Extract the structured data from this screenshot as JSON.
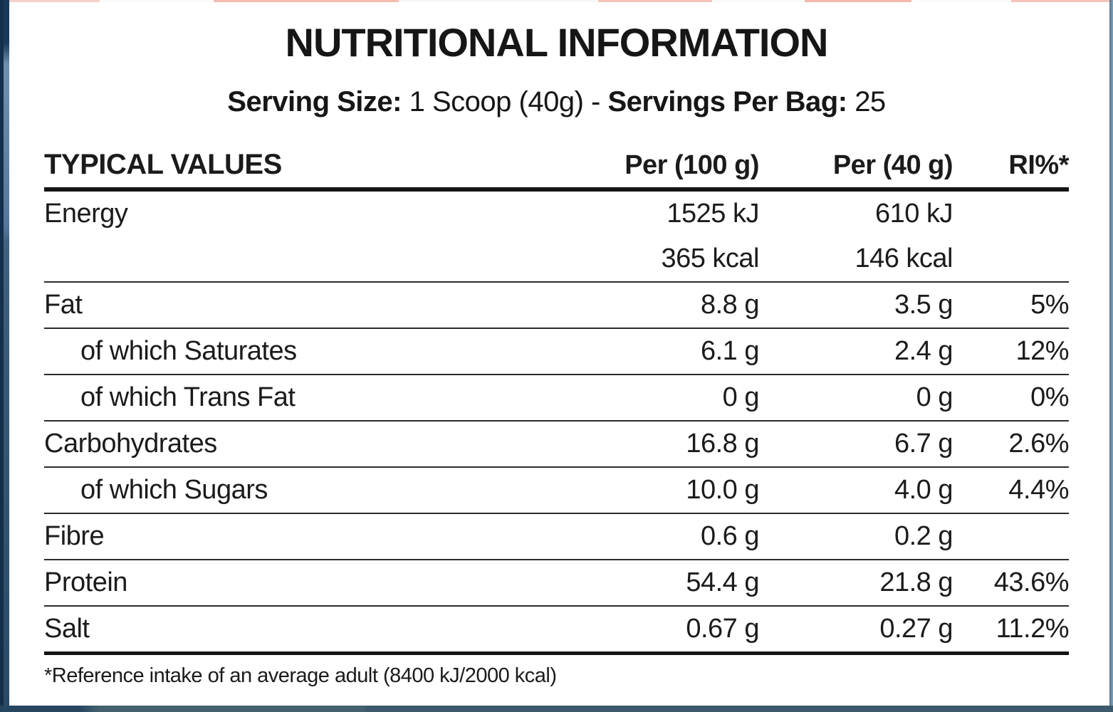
{
  "title": "NUTRITIONAL INFORMATION",
  "serving": {
    "size_label": "Serving Size:",
    "size_value": "1 Scoop (40g)",
    "separator": "-",
    "per_bag_label": "Servings Per Bag:",
    "per_bag_value": "25"
  },
  "table": {
    "headers": {
      "col0": "TYPICAL VALUES",
      "col1": "Per (100 g)",
      "col2": "Per (40 g)",
      "col3": "RI%*"
    },
    "rows": [
      {
        "label": "Energy",
        "per100": "1525 kJ",
        "per40": "610 kJ",
        "ri": ""
      },
      {
        "label": "",
        "per100": "365 kcal",
        "per40": "146 kcal",
        "ri": ""
      },
      {
        "label": "Fat",
        "per100": "8.8 g",
        "per40": "3.5 g",
        "ri": "5%"
      },
      {
        "label": "of which Saturates",
        "per100": "6.1 g",
        "per40": "2.4 g",
        "ri": "12%"
      },
      {
        "label": "of which Trans Fat",
        "per100": "0 g",
        "per40": "0 g",
        "ri": "0%"
      },
      {
        "label": "Carbohydrates",
        "per100": "16.8 g",
        "per40": "6.7 g",
        "ri": "2.6%"
      },
      {
        "label": "of which Sugars",
        "per100": "10.0 g",
        "per40": "4.0 g",
        "ri": "4.4%"
      },
      {
        "label": "Fibre",
        "per100": "0.6 g",
        "per40": "0.2 g",
        "ri": ""
      },
      {
        "label": "Protein",
        "per100": "54.4 g",
        "per40": "21.8 g",
        "ri": "43.6%"
      },
      {
        "label": "Salt",
        "per100": "0.67 g",
        "per40": "0.27 g",
        "ri": "11.2%"
      }
    ]
  },
  "footnote": "*Reference intake of an average adult (8400 kJ/2000 kcal)",
  "colors": {
    "card_bg": "#ffffff",
    "text": "#1b1b1b",
    "rule_thin": "#2b2b2b",
    "rule_thick": "#141414",
    "border_left_dark": "#132f4c",
    "border_left_light": "#4f7394",
    "border_bottom": "#3c5a6c",
    "border_right": "#53768f",
    "top_accent": "#f4bcae"
  }
}
